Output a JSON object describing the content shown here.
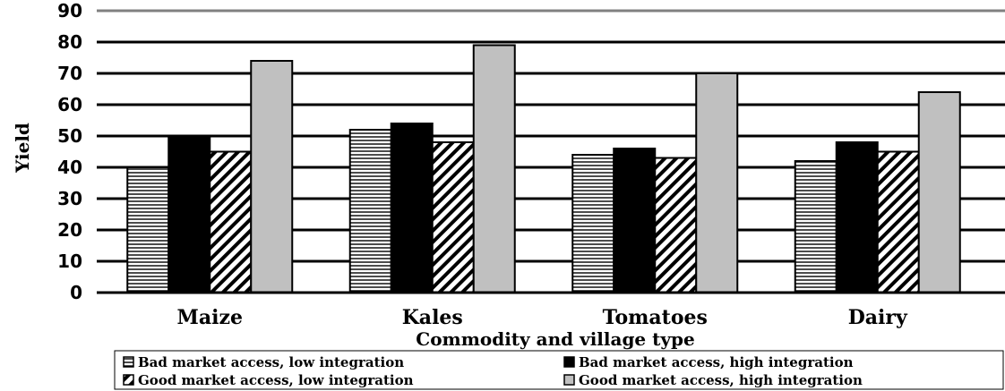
{
  "chart_data": {
    "type": "bar",
    "title": "",
    "xlabel": "Commodity and village type",
    "ylabel": "Yield",
    "ylim": [
      0,
      90
    ],
    "yticks": [
      0,
      10,
      20,
      30,
      40,
      50,
      60,
      70,
      80,
      90
    ],
    "grid": true,
    "legend_position": "bottom",
    "categories": [
      "Maize",
      "Kales",
      "Tomatoes",
      "Dairy"
    ],
    "series": [
      {
        "name": "Bad market access, low integration",
        "pattern": "horizontal-lines",
        "color": "#ffffff",
        "values": [
          40,
          52,
          44,
          42
        ]
      },
      {
        "name": "Bad market access, high integration",
        "pattern": "solid",
        "color": "#000000",
        "values": [
          50,
          54,
          46,
          48
        ]
      },
      {
        "name": "Good market access, low integration",
        "pattern": "diagonal-hatch",
        "color": "#ffffff",
        "values": [
          45,
          48,
          43,
          45
        ]
      },
      {
        "name": "Good market access, high integration",
        "pattern": "solid",
        "color": "#c0c0c0",
        "values": [
          74,
          79,
          70,
          64
        ]
      }
    ]
  }
}
